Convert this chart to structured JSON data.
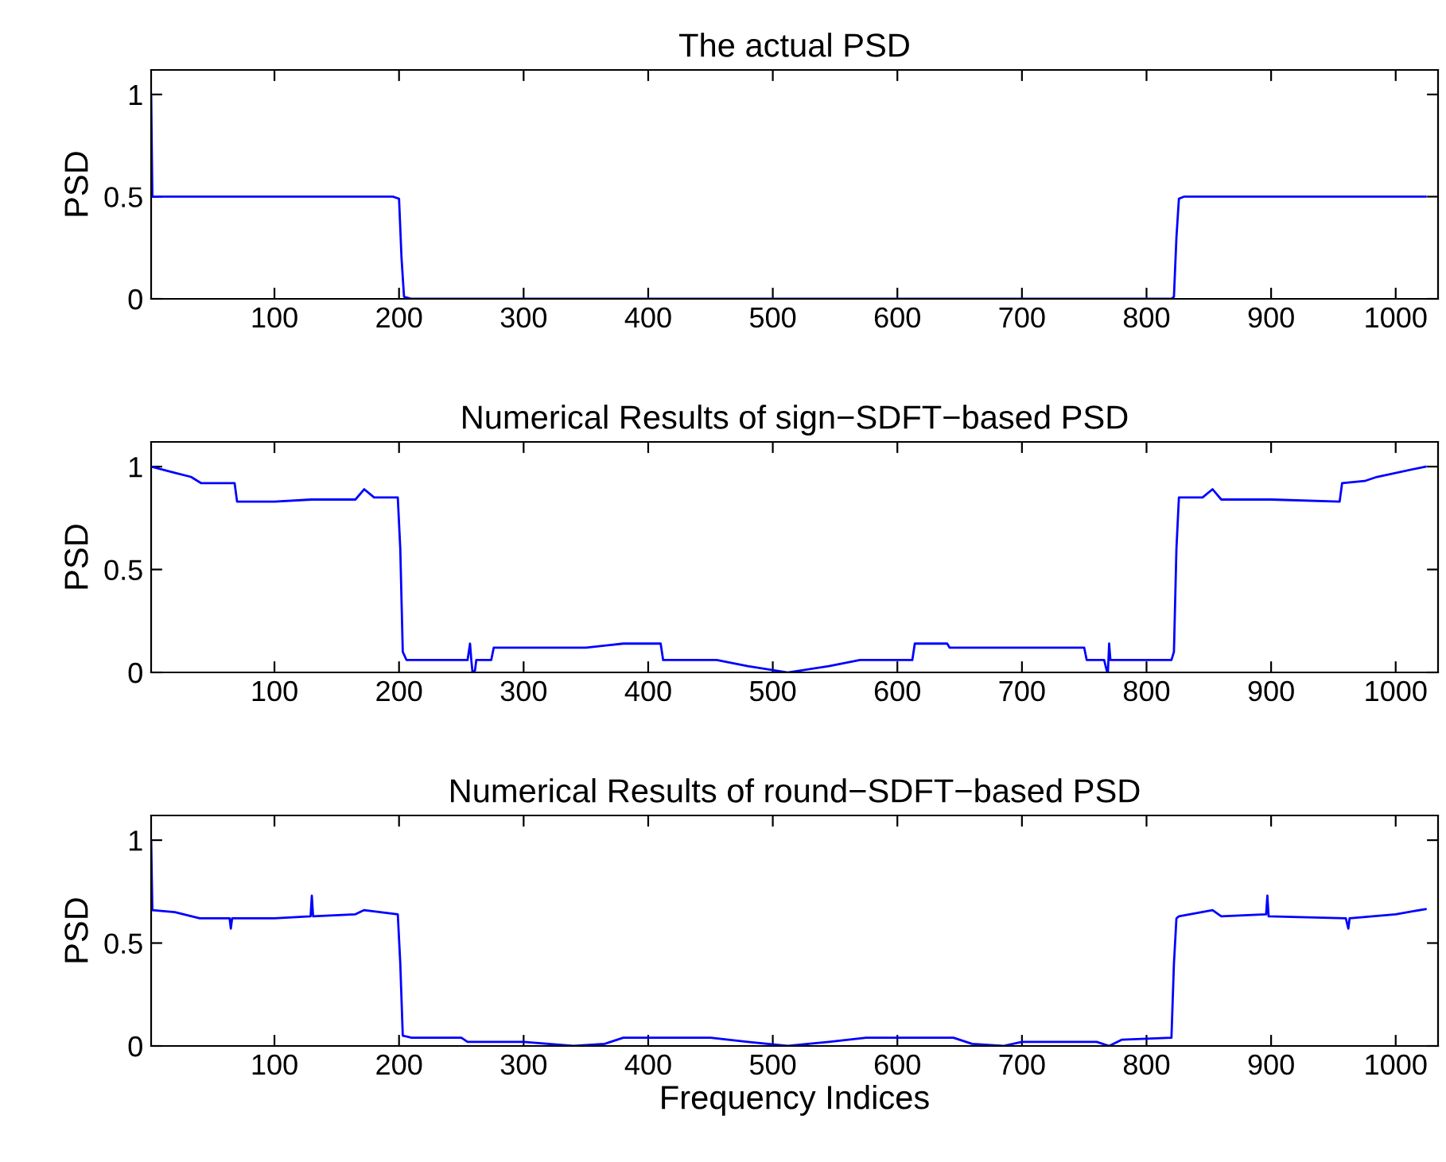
{
  "chart_data": [
    {
      "type": "line",
      "title": "The actual PSD",
      "ylabel": "PSD",
      "xlim": [
        1,
        1034
      ],
      "ylim": [
        0,
        1.12
      ],
      "xticks": [
        100,
        200,
        300,
        400,
        500,
        600,
        700,
        800,
        900,
        1000
      ],
      "yticks": [
        0,
        0.5,
        1
      ],
      "grid": false,
      "legend": false,
      "series": [
        {
          "color": "#0000ff",
          "x": [
            1,
            2,
            195,
            200,
            202,
            204,
            210,
            820,
            822,
            824,
            826,
            830,
            1024
          ],
          "values": [
            1,
            0.5,
            0.5,
            0.49,
            0.2,
            0.01,
            0,
            0,
            0.01,
            0.3,
            0.49,
            0.5,
            0.5
          ]
        }
      ]
    },
    {
      "type": "line",
      "title": "Numerical Results of sign−SDFT−based PSD",
      "ylabel": "PSD",
      "xlim": [
        1,
        1034
      ],
      "ylim": [
        0,
        1.12
      ],
      "xticks": [
        100,
        200,
        300,
        400,
        500,
        600,
        700,
        800,
        900,
        1000
      ],
      "yticks": [
        0,
        0.5,
        1
      ],
      "grid": false,
      "legend": false,
      "series": [
        {
          "color": "#0000ff",
          "x": [
            1,
            20,
            33,
            41,
            68,
            70,
            100,
            130,
            165,
            172,
            180,
            199,
            201,
            203,
            206,
            255,
            257,
            258,
            259,
            261,
            262,
            274,
            276,
            350,
            380,
            410,
            412,
            455,
            480,
            512,
            545,
            570,
            612,
            614,
            640,
            642,
            750,
            752,
            766,
            768,
            769,
            770,
            771,
            820,
            822,
            824,
            826,
            845,
            853,
            860,
            900,
            955,
            957,
            975,
            985,
            1024
          ],
          "values": [
            1,
            0.97,
            0.95,
            0.92,
            0.92,
            0.83,
            0.83,
            0.84,
            0.84,
            0.89,
            0.85,
            0.85,
            0.6,
            0.1,
            0.06,
            0.06,
            0.14,
            0.06,
            0,
            0.01,
            0.06,
            0.06,
            0.12,
            0.12,
            0.14,
            0.14,
            0.06,
            0.06,
            0.03,
            0,
            0.03,
            0.06,
            0.06,
            0.14,
            0.14,
            0.12,
            0.12,
            0.06,
            0.06,
            0.01,
            0,
            0.14,
            0.06,
            0.06,
            0.1,
            0.6,
            0.85,
            0.85,
            0.89,
            0.84,
            0.84,
            0.83,
            0.92,
            0.93,
            0.95,
            1
          ]
        }
      ]
    },
    {
      "type": "line",
      "title": "Numerical Results of round−SDFT−based PSD",
      "xlabel": "Frequency Indices",
      "ylabel": "PSD",
      "xlim": [
        1,
        1034
      ],
      "ylim": [
        0,
        1.12
      ],
      "xticks": [
        100,
        200,
        300,
        400,
        500,
        600,
        700,
        800,
        900,
        1000
      ],
      "yticks": [
        0,
        0.5,
        1
      ],
      "grid": false,
      "legend": false,
      "series": [
        {
          "color": "#0000ff",
          "x": [
            1,
            2,
            20,
            40,
            64,
            65,
            66,
            100,
            129,
            130,
            131,
            165,
            172,
            199,
            201,
            203,
            210,
            250,
            255,
            300,
            340,
            365,
            380,
            450,
            480,
            512,
            545,
            575,
            645,
            660,
            685,
            700,
            760,
            770,
            780,
            820,
            822,
            824,
            826,
            853,
            860,
            896,
            897,
            898,
            960,
            962,
            963,
            1000,
            1024
          ],
          "values": [
            1,
            0.66,
            0.65,
            0.62,
            0.62,
            0.57,
            0.62,
            0.62,
            0.63,
            0.73,
            0.63,
            0.64,
            0.66,
            0.64,
            0.4,
            0.05,
            0.04,
            0.04,
            0.02,
            0.02,
            0,
            0.01,
            0.04,
            0.04,
            0.02,
            0,
            0.02,
            0.04,
            0.04,
            0.01,
            0,
            0.02,
            0.02,
            0,
            0.03,
            0.04,
            0.4,
            0.62,
            0.63,
            0.66,
            0.63,
            0.64,
            0.73,
            0.63,
            0.62,
            0.57,
            0.62,
            0.64,
            0.665
          ]
        }
      ]
    }
  ]
}
